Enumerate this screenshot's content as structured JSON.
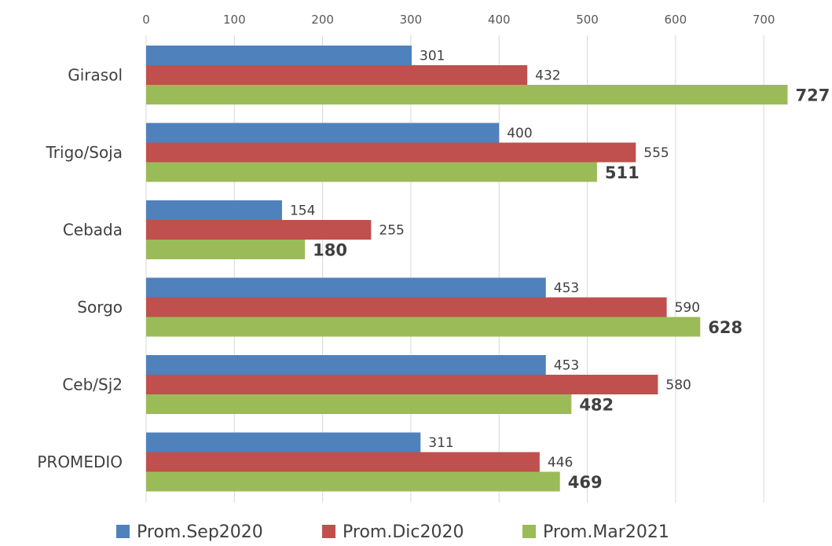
{
  "chart_data": {
    "type": "bar",
    "orientation": "horizontal",
    "categories": [
      "Girasol",
      "Trigo/Soja",
      "Cebada",
      "Sorgo",
      "Ceb/Sj2",
      "PROMEDIO"
    ],
    "series": [
      {
        "name": "Prom.Sep2020",
        "color": "#4f81bd",
        "values": [
          301,
          400,
          154,
          453,
          453,
          311
        ]
      },
      {
        "name": "Prom.Dic2020",
        "color": "#c0504d",
        "values": [
          432,
          555,
          255,
          590,
          580,
          446
        ]
      },
      {
        "name": "Prom.Mar2021",
        "color": "#9bbb59",
        "values": [
          727,
          511,
          180,
          628,
          482,
          469
        ]
      }
    ],
    "xaxis": {
      "position": "top",
      "ticks": [
        0,
        100,
        200,
        300,
        400,
        500,
        600,
        700
      ],
      "tick_labels": [
        "0",
        "100",
        "200",
        "300",
        "400",
        "500",
        "600",
        "700"
      ],
      "xlim": [
        0,
        780
      ]
    },
    "grid": "vertical",
    "legend": "bottom",
    "data_labels": true,
    "bold_series": "Prom.Mar2021"
  }
}
